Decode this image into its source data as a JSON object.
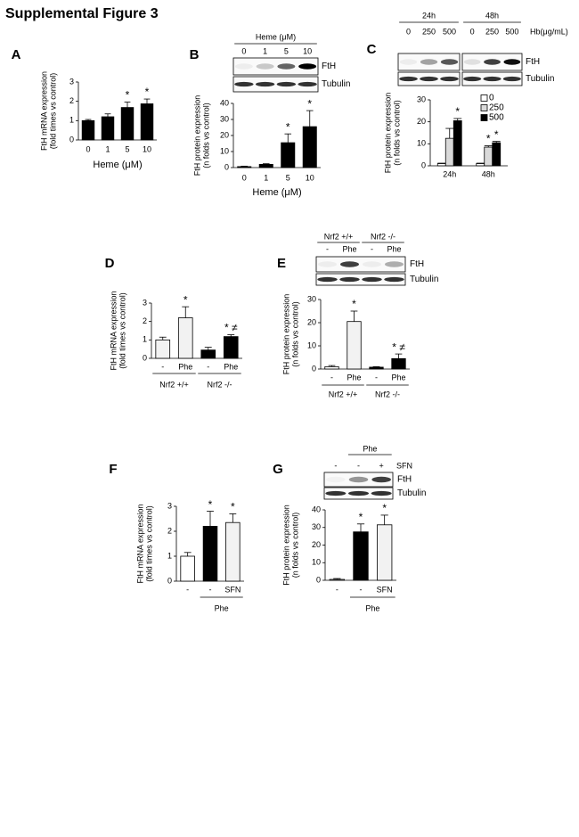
{
  "title": "Supplemental Figure 3",
  "chart_data": [
    {
      "panel": "A",
      "type": "bar",
      "ylabel": [
        "FtH mRNA expression",
        "(fold times vs control)"
      ],
      "xlabel": "Heme (μM)",
      "categories": [
        "0",
        "1",
        "5",
        "10"
      ],
      "values": [
        1.0,
        1.2,
        1.68,
        1.87
      ],
      "errors": [
        0.06,
        0.15,
        0.28,
        0.25
      ],
      "annotations": [
        null,
        null,
        "*",
        "*"
      ],
      "colors": [
        "#000000",
        "#000000",
        "#000000",
        "#000000"
      ],
      "ylim": [
        0,
        3
      ],
      "yticks": [
        0,
        1,
        2,
        3
      ]
    },
    {
      "panel": "B",
      "type": "bar",
      "blot": {
        "lane_groups": [
          {
            "label": "Heme (μM)",
            "lanes": [
              "0",
              "1",
              "5",
              "10"
            ]
          }
        ],
        "bands": [
          "FtH",
          "Tubulin"
        ]
      },
      "ylabel": [
        "FtH protein expression",
        "(n folds vs control)"
      ],
      "xlabel": "Heme (μM)",
      "categories": [
        "0",
        "1",
        "5",
        "10"
      ],
      "values": [
        0.6,
        2,
        15.5,
        25.5
      ],
      "errors": [
        0.3,
        0.4,
        5.5,
        10
      ],
      "annotations": [
        null,
        null,
        "*",
        "*"
      ],
      "colors": [
        "#000000",
        "#000000",
        "#000000",
        "#000000"
      ],
      "ylim": [
        0,
        40
      ],
      "yticks": [
        0,
        10,
        20,
        30,
        40
      ]
    },
    {
      "panel": "C",
      "type": "grouped_bar",
      "blot": {
        "lane_groups": [
          {
            "label": "24h",
            "lanes": [
              "0",
              "250",
              "500"
            ]
          },
          {
            "label": "48h",
            "lanes": [
              "0",
              "250",
              "500"
            ]
          }
        ],
        "lane_label": "Hb(μg/mL)",
        "bands": [
          "FtH",
          "Tubulin"
        ]
      },
      "ylabel": [
        "FtH protein expression",
        "(n folds vs control)"
      ],
      "categories": [
        "24h",
        "48h"
      ],
      "series": [
        {
          "name": "0",
          "color": "#ffffff",
          "values": [
            1,
            1
          ],
          "errors": [
            0.2,
            0.2
          ],
          "annotations": [
            null,
            null
          ]
        },
        {
          "name": "250",
          "color": "#d9d9d9",
          "values": [
            12.5,
            8.5
          ],
          "errors": [
            4.5,
            0.6
          ],
          "annotations": [
            null,
            "*"
          ]
        },
        {
          "name": "500",
          "color": "#000000",
          "values": [
            20.5,
            10.5
          ],
          "errors": [
            1,
            0.6
          ],
          "annotations": [
            "*",
            "*"
          ]
        }
      ],
      "ylim": [
        0,
        30
      ],
      "yticks": [
        0,
        10,
        20,
        30
      ],
      "legend": "top-right"
    },
    {
      "panel": "D",
      "type": "bar",
      "ylabel": [
        "FtH mRNA expression",
        "(fold times vs control)"
      ],
      "groups": [
        {
          "label": "Nrf2 +/+",
          "categories": [
            "-",
            "Phe"
          ]
        },
        {
          "label": "Nrf2 -/-",
          "categories": [
            "-",
            "Phe"
          ]
        }
      ],
      "values": [
        1,
        2.2,
        0.45,
        1.18
      ],
      "errors": [
        0.15,
        0.6,
        0.15,
        0.1
      ],
      "annotations": [
        null,
        "*",
        null,
        "* ≠"
      ],
      "colors": [
        "#f2f2f2",
        "#f2f2f2",
        "#000000",
        "#000000"
      ],
      "ylim": [
        0,
        3
      ],
      "yticks": [
        0,
        1,
        2,
        3
      ]
    },
    {
      "panel": "E",
      "type": "bar",
      "blot": {
        "lane_groups": [
          {
            "label": "Nrf2 +/+",
            "lanes": [
              "-",
              "Phe"
            ]
          },
          {
            "label": "Nrf2 -/-",
            "lanes": [
              "-",
              "Phe"
            ]
          }
        ],
        "bands": [
          "FtH",
          "Tubulin"
        ]
      },
      "ylabel": [
        "FtH protein expression",
        "(n folds vs control)"
      ],
      "groups": [
        {
          "label": "Nrf2 +/+",
          "categories": [
            "-",
            "Phe"
          ]
        },
        {
          "label": "Nrf2 -/-",
          "categories": [
            "-",
            "Phe"
          ]
        }
      ],
      "values": [
        1,
        20.5,
        0.8,
        4.5
      ],
      "errors": [
        0.5,
        4.5,
        0.2,
        2
      ],
      "annotations": [
        null,
        "*",
        null,
        "* ≠"
      ],
      "colors": [
        "#ffffff",
        "#f2f2f2",
        "#000000",
        "#000000"
      ],
      "ylim": [
        0,
        30
      ],
      "yticks": [
        0,
        10,
        20,
        30
      ]
    },
    {
      "panel": "F",
      "type": "bar",
      "ylabel": [
        "FtH mRNA expression",
        "(fold times vs control)"
      ],
      "groups": [
        {
          "label": null,
          "categories": [
            "-"
          ]
        },
        {
          "label": "Phe",
          "categories": [
            "-",
            "SFN"
          ]
        }
      ],
      "values": [
        1,
        2.2,
        2.35
      ],
      "errors": [
        0.15,
        0.6,
        0.35
      ],
      "annotations": [
        null,
        "*",
        "*"
      ],
      "colors": [
        "#ffffff",
        "#000000",
        "#f2f2f2"
      ],
      "ylim": [
        0,
        3
      ],
      "yticks": [
        0,
        1,
        2,
        3
      ]
    },
    {
      "panel": "G",
      "type": "bar",
      "blot": {
        "lane_groups": [
          {
            "label": null,
            "lanes": [
              "-"
            ]
          },
          {
            "label": "Phe",
            "lanes": [
              "-",
              "+"
            ]
          }
        ],
        "lane_label": "SFN",
        "bands": [
          "FtH",
          "Tubulin"
        ]
      },
      "ylabel": [
        "FtH protein expression",
        "(n folds vs control)"
      ],
      "groups": [
        {
          "label": null,
          "categories": [
            "-"
          ]
        },
        {
          "label": "Phe",
          "categories": [
            "-",
            "SFN"
          ]
        }
      ],
      "values": [
        0.5,
        27.5,
        31.5
      ],
      "errors": [
        0.5,
        4.5,
        5.5
      ],
      "annotations": [
        null,
        "*",
        "*"
      ],
      "colors": [
        "#ffffff",
        "#000000",
        "#f2f2f2"
      ],
      "ylim": [
        0,
        40
      ],
      "yticks": [
        0,
        10,
        20,
        30,
        40
      ]
    }
  ]
}
